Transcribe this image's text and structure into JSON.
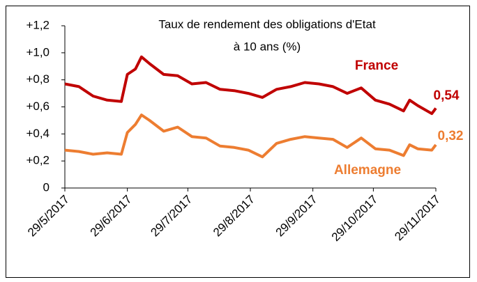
{
  "chart_data": {
    "type": "line",
    "title": [
      "Taux de rendement des obligations d'Etat",
      "à 10 ans (%)"
    ],
    "x": [
      "29/5/2017",
      "5/6/2017",
      "12/6/2017",
      "19/6/2017",
      "26/6/2017",
      "29/6/2017",
      "3/7/2017",
      "6/7/2017",
      "10/7/2017",
      "17/7/2017",
      "24/7/2017",
      "31/7/2017",
      "7/8/2017",
      "14/8/2017",
      "21/8/2017",
      "28/8/2017",
      "4/9/2017",
      "11/9/2017",
      "18/9/2017",
      "25/9/2017",
      "2/10/2017",
      "9/10/2017",
      "16/10/2017",
      "23/10/2017",
      "30/10/2017",
      "6/11/2017",
      "13/11/2017",
      "16/11/2017",
      "20/11/2017",
      "27/11/2017",
      "29/11/2017"
    ],
    "series": [
      {
        "name": "France",
        "color": "#c00000",
        "values": [
          0.77,
          0.75,
          0.68,
          0.65,
          0.64,
          0.84,
          0.88,
          0.97,
          0.92,
          0.84,
          0.83,
          0.77,
          0.78,
          0.73,
          0.72,
          0.7,
          0.67,
          0.73,
          0.75,
          0.78,
          0.77,
          0.75,
          0.7,
          0.74,
          0.65,
          0.62,
          0.57,
          0.65,
          0.61,
          0.55,
          0.59
        ]
      },
      {
        "name": "Allemagne",
        "color": "#ed7d31",
        "values": [
          0.28,
          0.27,
          0.25,
          0.26,
          0.25,
          0.41,
          0.47,
          0.54,
          0.5,
          0.42,
          0.45,
          0.38,
          0.37,
          0.31,
          0.3,
          0.28,
          0.23,
          0.33,
          0.36,
          0.38,
          0.37,
          0.36,
          0.3,
          0.37,
          0.29,
          0.28,
          0.24,
          0.32,
          0.29,
          0.28,
          0.32
        ]
      }
    ],
    "annotations": [
      "0,54",
      "0,32"
    ],
    "xlim": [
      "29/5/2017",
      "29/11/2017"
    ],
    "xticks": [
      "29/5/2017",
      "29/6/2017",
      "29/7/2017",
      "29/8/2017",
      "29/9/2017",
      "29/10/2017",
      "29/11/2017"
    ],
    "ylim": [
      0,
      1.2
    ],
    "yticks": [
      {
        "value": 0,
        "label": "0"
      },
      {
        "value": 0.2,
        "label": "+0,2"
      },
      {
        "value": 0.4,
        "label": "+0,4"
      },
      {
        "value": 0.6,
        "label": "+0,6"
      },
      {
        "value": 0.8,
        "label": "+0,8"
      },
      {
        "value": 1.0,
        "label": "+1,0"
      },
      {
        "value": 1.2,
        "label": "+1,2"
      }
    ],
    "grid": false
  }
}
